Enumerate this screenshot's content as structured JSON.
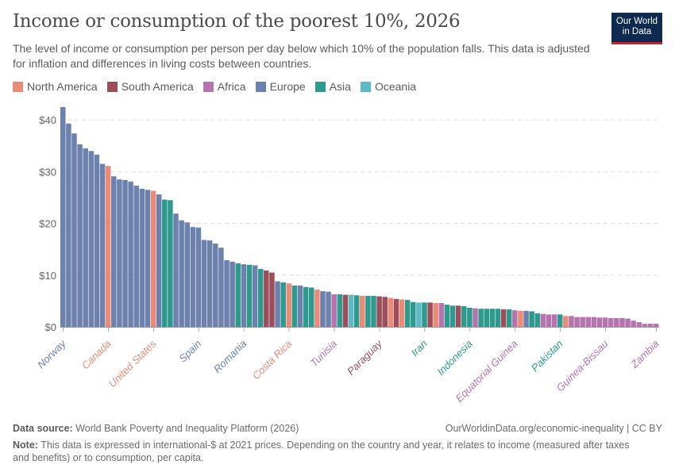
{
  "header": {
    "title": "Income or consumption of the poorest 10%, 2026",
    "subtitle": "The level of income or consumption per person per day below which 10% of the population falls. This data is adjusted for inflation and differences in living costs between countries.",
    "logo_line1": "Our World",
    "logo_line2": "in Data"
  },
  "colors": {
    "North America": "#ec8a78",
    "South America": "#9c4f5a",
    "Africa": "#b574ae",
    "Europe": "#6c82ad",
    "Asia": "#2e9a8e",
    "Oceania": "#5bbac6"
  },
  "legend": [
    "North America",
    "South America",
    "Africa",
    "Europe",
    "Asia",
    "Oceania"
  ],
  "chart_data": {
    "type": "bar",
    "title": "Income or consumption of the poorest 10%, 2026",
    "ylim": [
      0,
      43
    ],
    "yticks": [
      0,
      10,
      20,
      30,
      40
    ],
    "ytick_labels": [
      "$0",
      "$10",
      "$20",
      "$30",
      "$40"
    ],
    "grid": "horizontal dashed",
    "legend_placement": "top-left",
    "bars": [
      {
        "v": 42.5,
        "r": "Europe"
      },
      {
        "v": 39.3,
        "r": "Europe"
      },
      {
        "v": 37.4,
        "r": "Europe"
      },
      {
        "v": 35.3,
        "r": "Europe"
      },
      {
        "v": 34.5,
        "r": "Europe"
      },
      {
        "v": 34.0,
        "r": "Europe"
      },
      {
        "v": 33.3,
        "r": "Europe"
      },
      {
        "v": 31.5,
        "r": "Europe"
      },
      {
        "v": 31.1,
        "r": "North America"
      },
      {
        "v": 29.1,
        "r": "Europe"
      },
      {
        "v": 28.5,
        "r": "Europe"
      },
      {
        "v": 28.4,
        "r": "Europe"
      },
      {
        "v": 28.1,
        "r": "Europe"
      },
      {
        "v": 27.3,
        "r": "Europe"
      },
      {
        "v": 26.7,
        "r": "Europe"
      },
      {
        "v": 26.5,
        "r": "Europe"
      },
      {
        "v": 26.3,
        "r": "North America"
      },
      {
        "v": 25.6,
        "r": "Europe"
      },
      {
        "v": 24.6,
        "r": "Asia"
      },
      {
        "v": 24.5,
        "r": "Asia"
      },
      {
        "v": 21.9,
        "r": "Europe"
      },
      {
        "v": 20.6,
        "r": "Europe"
      },
      {
        "v": 20.2,
        "r": "Europe"
      },
      {
        "v": 19.3,
        "r": "Europe"
      },
      {
        "v": 19.2,
        "r": "Europe"
      },
      {
        "v": 16.8,
        "r": "Europe"
      },
      {
        "v": 16.7,
        "r": "Europe"
      },
      {
        "v": 16.1,
        "r": "Europe"
      },
      {
        "v": 15.3,
        "r": "Europe"
      },
      {
        "v": 12.9,
        "r": "Europe"
      },
      {
        "v": 12.6,
        "r": "Europe"
      },
      {
        "v": 12.3,
        "r": "Asia"
      },
      {
        "v": 12.1,
        "r": "Europe"
      },
      {
        "v": 12.0,
        "r": "Asia"
      },
      {
        "v": 11.9,
        "r": "Europe"
      },
      {
        "v": 11.2,
        "r": "Asia"
      },
      {
        "v": 10.9,
        "r": "South America"
      },
      {
        "v": 10.5,
        "r": "South America"
      },
      {
        "v": 8.8,
        "r": "Europe"
      },
      {
        "v": 8.6,
        "r": "Asia"
      },
      {
        "v": 8.4,
        "r": "North America"
      },
      {
        "v": 8.0,
        "r": "Asia"
      },
      {
        "v": 8.0,
        "r": "Europe"
      },
      {
        "v": 7.7,
        "r": "Asia"
      },
      {
        "v": 7.6,
        "r": "Asia"
      },
      {
        "v": 7.2,
        "r": "North America"
      },
      {
        "v": 6.9,
        "r": "Europe"
      },
      {
        "v": 6.8,
        "r": "Europe"
      },
      {
        "v": 6.3,
        "r": "Africa"
      },
      {
        "v": 6.3,
        "r": "Asia"
      },
      {
        "v": 6.2,
        "r": "South America"
      },
      {
        "v": 6.2,
        "r": "Oceania"
      },
      {
        "v": 6.1,
        "r": "Asia"
      },
      {
        "v": 6.0,
        "r": "North America"
      },
      {
        "v": 6.0,
        "r": "Asia"
      },
      {
        "v": 6.0,
        "r": "Asia"
      },
      {
        "v": 5.9,
        "r": "South America"
      },
      {
        "v": 5.8,
        "r": "South America"
      },
      {
        "v": 5.6,
        "r": "North America"
      },
      {
        "v": 5.4,
        "r": "South America"
      },
      {
        "v": 5.3,
        "r": "North America"
      },
      {
        "v": 5.2,
        "r": "Asia"
      },
      {
        "v": 4.8,
        "r": "Asia"
      },
      {
        "v": 4.7,
        "r": "Oceania"
      },
      {
        "v": 4.7,
        "r": "Asia"
      },
      {
        "v": 4.7,
        "r": "South America"
      },
      {
        "v": 4.6,
        "r": "North America"
      },
      {
        "v": 4.6,
        "r": "Africa"
      },
      {
        "v": 4.3,
        "r": "Asia"
      },
      {
        "v": 4.1,
        "r": "Asia"
      },
      {
        "v": 4.1,
        "r": "South America"
      },
      {
        "v": 4.0,
        "r": "Asia"
      },
      {
        "v": 3.7,
        "r": "Asia"
      },
      {
        "v": 3.6,
        "r": "Africa"
      },
      {
        "v": 3.5,
        "r": "Asia"
      },
      {
        "v": 3.5,
        "r": "Asia"
      },
      {
        "v": 3.5,
        "r": "Asia"
      },
      {
        "v": 3.5,
        "r": "Asia"
      },
      {
        "v": 3.4,
        "r": "South America"
      },
      {
        "v": 3.4,
        "r": "Asia"
      },
      {
        "v": 3.2,
        "r": "Africa"
      },
      {
        "v": 3.1,
        "r": "North America"
      },
      {
        "v": 3.1,
        "r": "Europe"
      },
      {
        "v": 3.0,
        "r": "Asia"
      },
      {
        "v": 2.6,
        "r": "Asia"
      },
      {
        "v": 2.5,
        "r": "Africa"
      },
      {
        "v": 2.4,
        "r": "Africa"
      },
      {
        "v": 2.4,
        "r": "Africa"
      },
      {
        "v": 2.4,
        "r": "Asia"
      },
      {
        "v": 2.1,
        "r": "North America"
      },
      {
        "v": 2.1,
        "r": "Africa"
      },
      {
        "v": 1.9,
        "r": "Africa"
      },
      {
        "v": 1.9,
        "r": "Africa"
      },
      {
        "v": 1.9,
        "r": "Africa"
      },
      {
        "v": 1.9,
        "r": "Africa"
      },
      {
        "v": 1.8,
        "r": "Africa"
      },
      {
        "v": 1.8,
        "r": "Africa"
      },
      {
        "v": 1.7,
        "r": "Africa"
      },
      {
        "v": 1.7,
        "r": "Africa"
      },
      {
        "v": 1.7,
        "r": "Africa"
      },
      {
        "v": 1.6,
        "r": "Africa"
      },
      {
        "v": 1.2,
        "r": "Africa"
      },
      {
        "v": 0.9,
        "r": "Africa"
      },
      {
        "v": 0.6,
        "r": "Africa"
      },
      {
        "v": 0.6,
        "r": "Africa"
      },
      {
        "v": 0.6,
        "r": "Africa"
      }
    ],
    "labeled_bars": [
      {
        "bar": 0,
        "label": "Norway",
        "r": "Europe"
      },
      {
        "bar": 8,
        "label": "Canada",
        "r": "North America"
      },
      {
        "bar": 16,
        "label": "United States",
        "r": "North America"
      },
      {
        "bar": 24,
        "label": "Spain",
        "r": "Europe"
      },
      {
        "bar": 32,
        "label": "Romania",
        "r": "Europe"
      },
      {
        "bar": 40,
        "label": "Costa Rica",
        "r": "North America"
      },
      {
        "bar": 48,
        "label": "Tunisia",
        "r": "Africa"
      },
      {
        "bar": 56,
        "label": "Paraguay",
        "r": "South America"
      },
      {
        "bar": 64,
        "label": "Iran",
        "r": "Asia"
      },
      {
        "bar": 72,
        "label": "Indonesia",
        "r": "Asia"
      },
      {
        "bar": 80,
        "label": "Equatorial Guinea",
        "r": "Africa"
      },
      {
        "bar": 88,
        "label": "Pakistan",
        "r": "Asia"
      },
      {
        "bar": 96,
        "label": "Guinea-Bissau",
        "r": "Africa"
      },
      {
        "bar": 105,
        "label": "Zambia",
        "r": "Africa"
      }
    ]
  },
  "footer": {
    "source_label": "Data source:",
    "source": "World Bank Poverty and Inequality Platform (2026)",
    "url": "OurWorldinData.org/economic-inequality | CC BY",
    "note_label": "Note:",
    "note": "This data is expressed in international-$ at 2021 prices. Depending on the country and year, it relates to income (measured after taxes and benefits) or to consumption, per capita."
  }
}
